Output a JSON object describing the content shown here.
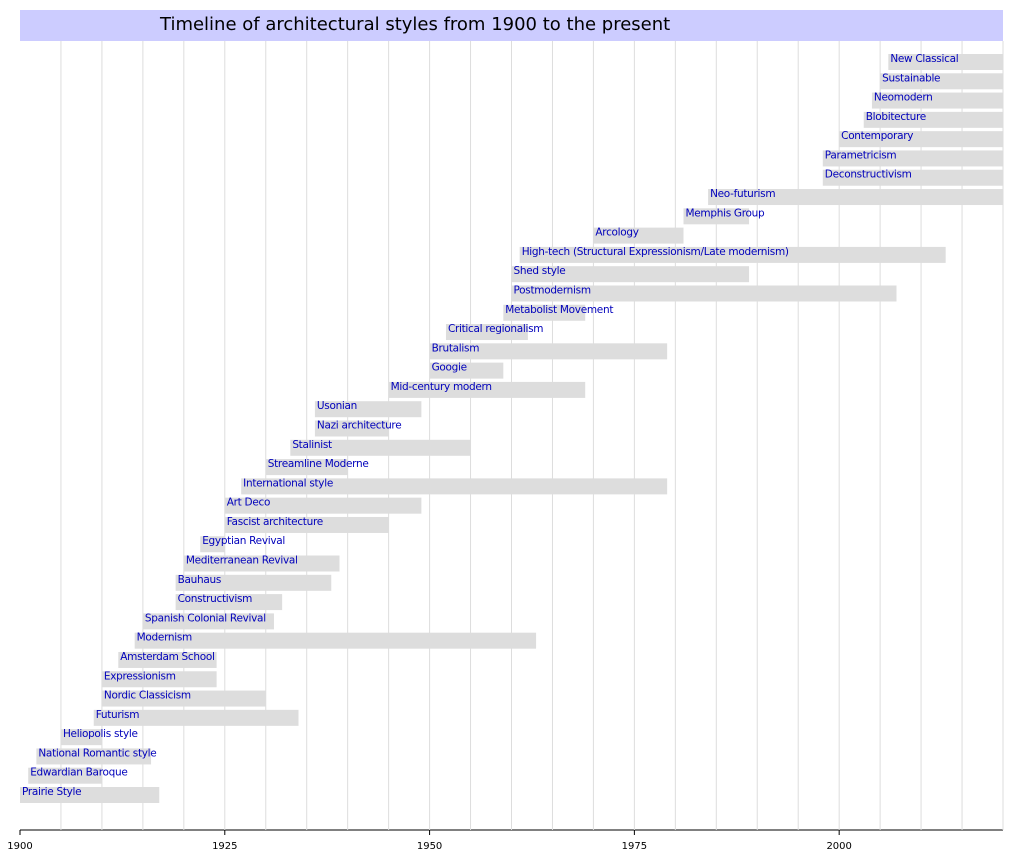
{
  "chart_data": {
    "type": "timeline",
    "title": "Timeline of architectural styles from 1900 to the present",
    "xlim": [
      1900,
      2020
    ],
    "xticks": [
      1900,
      1925,
      1950,
      1975,
      2000
    ],
    "xgrid": [
      1905,
      1910,
      1915,
      1920,
      1925,
      1930,
      1935,
      1940,
      1945,
      1950,
      1955,
      1960,
      1965,
      1970,
      1975,
      1980,
      1985,
      1990,
      1995,
      2000,
      2005,
      2010,
      2015,
      2020
    ],
    "bar_color": "#dddddd",
    "label_color": "#0000bb",
    "title_color": "#ccccff",
    "bars": [
      {
        "label": "Prairie Style",
        "start": 1900,
        "end": 1917
      },
      {
        "label": "Edwardian Baroque",
        "start": 1901,
        "end": 1910
      },
      {
        "label": "National Romantic style",
        "start": 1902,
        "end": 1916
      },
      {
        "label": "Heliopolis style",
        "start": 1905,
        "end": 1910
      },
      {
        "label": "Futurism",
        "start": 1909,
        "end": 1934
      },
      {
        "label": "Nordic Classicism",
        "start": 1910,
        "end": 1930
      },
      {
        "label": "Expressionism",
        "start": 1910,
        "end": 1924
      },
      {
        "label": "Amsterdam School",
        "start": 1912,
        "end": 1924
      },
      {
        "label": "Modernism",
        "start": 1914,
        "end": 1963
      },
      {
        "label": "Spanish Colonial Revival",
        "start": 1915,
        "end": 1931
      },
      {
        "label": "Constructivism",
        "start": 1919,
        "end": 1932
      },
      {
        "label": "Bauhaus",
        "start": 1919,
        "end": 1938
      },
      {
        "label": "Mediterranean Revival",
        "start": 1920,
        "end": 1939
      },
      {
        "label": "Egyptian Revival",
        "start": 1922,
        "end": 1925
      },
      {
        "label": "Fascist architecture",
        "start": 1925,
        "end": 1945
      },
      {
        "label": "Art Deco",
        "start": 1925,
        "end": 1949
      },
      {
        "label": "International style",
        "start": 1927,
        "end": 1979
      },
      {
        "label": "Streamline Moderne",
        "start": 1930,
        "end": 1940
      },
      {
        "label": "Stalinist",
        "start": 1933,
        "end": 1955
      },
      {
        "label": "Nazi architecture",
        "start": 1936,
        "end": 1945
      },
      {
        "label": "Usonian",
        "start": 1936,
        "end": 1949
      },
      {
        "label": "Mid-century modern",
        "start": 1945,
        "end": 1969
      },
      {
        "label": "Googie",
        "start": 1950,
        "end": 1959
      },
      {
        "label": "Brutalism",
        "start": 1950,
        "end": 1979
      },
      {
        "label": "Critical regionalism",
        "start": 1952,
        "end": 1962
      },
      {
        "label": "Metabolist Movement",
        "start": 1959,
        "end": 1969
      },
      {
        "label": "Postmodernism",
        "start": 1960,
        "end": 2007
      },
      {
        "label": "Shed style",
        "start": 1960,
        "end": 1989
      },
      {
        "label": "High-tech (Structural Expressionism/Late modernism)",
        "start": 1961,
        "end": 2013
      },
      {
        "label": "Arcology",
        "start": 1970,
        "end": 1981
      },
      {
        "label": "Memphis Group",
        "start": 1981,
        "end": 1989
      },
      {
        "label": "Neo-futurism",
        "start": 1984,
        "end": 2020
      },
      {
        "label": "Deconstructivism",
        "start": 1998,
        "end": 2020
      },
      {
        "label": "Parametricism",
        "start": 1998,
        "end": 2020
      },
      {
        "label": "Contemporary",
        "start": 2000,
        "end": 2020
      },
      {
        "label": "Blobitecture",
        "start": 2003,
        "end": 2020
      },
      {
        "label": "Neomodern",
        "start": 2004,
        "end": 2020
      },
      {
        "label": "Sustainable",
        "start": 2005,
        "end": 2020
      },
      {
        "label": "New Classical",
        "start": 2006,
        "end": 2020
      }
    ]
  }
}
